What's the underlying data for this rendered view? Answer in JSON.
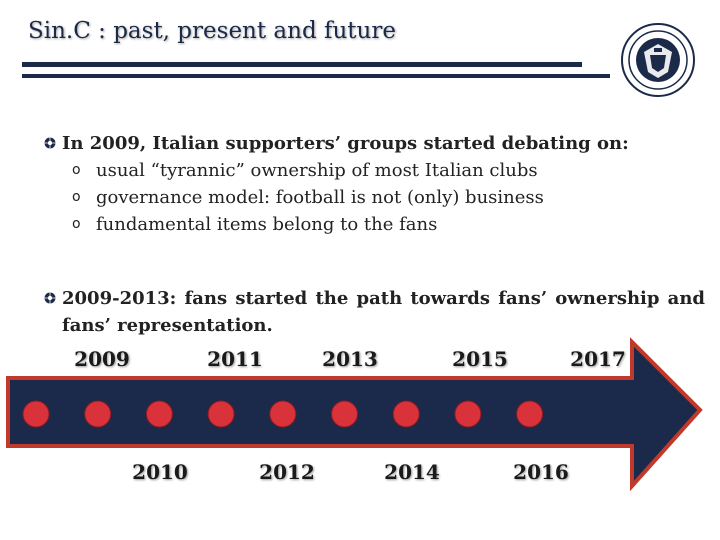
{
  "slide": {
    "title": "Sin.C : past, present and future"
  },
  "logo": {
    "icon": "club-crest-icon"
  },
  "bullet1": {
    "text": "In 2009, Italian supporters’ groups started debating on:",
    "sub_marker": "o",
    "sub_items": [
      "usual “tyrannic” ownership of most Italian clubs",
      "governance model: football is not (only) business",
      "fundamental items belong to the fans"
    ]
  },
  "bullet2": {
    "line1": "2009-2013: fans started the path towards fans’ ownership and",
    "line2": "fans’ representation."
  },
  "timeline": {
    "top_years": [
      "2009",
      "2011",
      "2013",
      "2015",
      "2017"
    ],
    "bottom_years": [
      "2010",
      "2012",
      "2014",
      "2016"
    ],
    "arrow_color": "#1b2a4a",
    "border_color": "#c0392b",
    "dot_color": "#d9323a",
    "dot_count": 9
  }
}
